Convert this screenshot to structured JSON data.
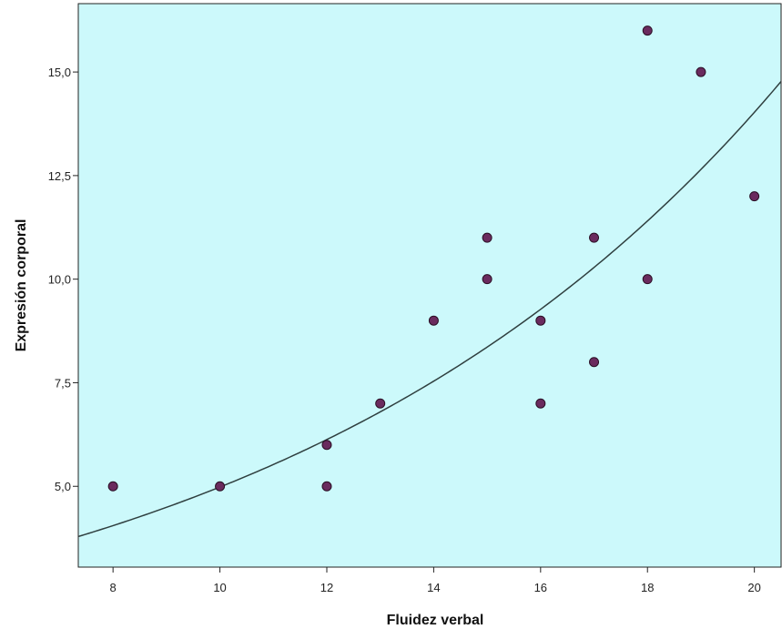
{
  "chart_data": {
    "type": "scatter",
    "title": "",
    "xlabel": "Fluidez verbal",
    "ylabel": "Expresión corporal",
    "xlim": [
      7.35,
      20.5
    ],
    "ylim": [
      3.05,
      16.65
    ],
    "x_ticks": [
      8,
      10,
      12,
      14,
      16,
      18,
      20
    ],
    "x_tick_labels": [
      "8",
      "10",
      "12",
      "14",
      "16",
      "18",
      "20"
    ],
    "y_ticks": [
      5,
      7.5,
      10,
      12.5,
      15
    ],
    "y_tick_labels": [
      "5,0",
      "7,5",
      "10,0",
      "12,5",
      "15,0"
    ],
    "grid": false,
    "legend": "none",
    "points": [
      {
        "x": 8,
        "y": 5
      },
      {
        "x": 10,
        "y": 5
      },
      {
        "x": 12,
        "y": 6
      },
      {
        "x": 12,
        "y": 5
      },
      {
        "x": 13,
        "y": 7
      },
      {
        "x": 14,
        "y": 9
      },
      {
        "x": 15,
        "y": 11
      },
      {
        "x": 15,
        "y": 10
      },
      {
        "x": 16,
        "y": 9
      },
      {
        "x": 16,
        "y": 7
      },
      {
        "x": 17,
        "y": 11
      },
      {
        "x": 17,
        "y": 8
      },
      {
        "x": 18,
        "y": 16
      },
      {
        "x": 18,
        "y": 10
      },
      {
        "x": 19,
        "y": 15
      },
      {
        "x": 20,
        "y": 12
      }
    ],
    "fit_curve": {
      "type": "exponential",
      "a": 1.77,
      "b": 0.1035
    },
    "colors": {
      "plot_background": "#ccf9fb",
      "marker_fill": "#6a2b5e",
      "marker_stroke": "#2a0f24",
      "fit_line": "#2f3f3f",
      "axis": "#222222"
    }
  }
}
